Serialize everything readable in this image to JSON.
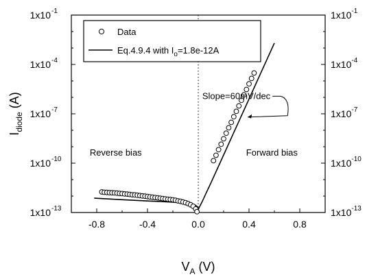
{
  "chart_data": {
    "type": "scatter",
    "xlabel": {
      "main": "V",
      "sub": "A",
      "unit": " (V)"
    },
    "ylabel": {
      "main": "I",
      "sub": "diode",
      "unit": " (A)"
    },
    "xlim": [
      -1.0,
      1.0
    ],
    "ylim_log10": [
      -13,
      -1
    ],
    "y_scale": "log",
    "x_ticks": [
      -0.8,
      -0.4,
      0.0,
      0.4,
      0.8
    ],
    "x_tick_labels": [
      "-0.8",
      "-0.4",
      "0.0",
      "0.4",
      "0.8"
    ],
    "y_ticks_log10": [
      -13,
      -10,
      -7,
      -4,
      -1
    ],
    "y_tick_labels": [
      {
        "base": "1x10",
        "exp": "-13"
      },
      {
        "base": "1x10",
        "exp": "-10"
      },
      {
        "base": "1x10",
        "exp": "-7"
      },
      {
        "base": "1x10",
        "exp": "-4"
      },
      {
        "base": "1x10",
        "exp": "-1"
      }
    ],
    "right_axis_labels": true,
    "vertical_reference_line": {
      "x": 0.0,
      "style": "dotted"
    },
    "legend": {
      "placement": "top-left",
      "entries": [
        {
          "label": "Data",
          "marker": "open-circle"
        },
        {
          "label_pre": "Eq.4.9.4 with I",
          "label_sub": "o",
          "label_post": "=1.8e-12A",
          "marker": "line"
        }
      ]
    },
    "annotations": [
      {
        "text": "Slope=60mV/dec",
        "x": 0.3,
        "y_log10": -6.1,
        "arrow_to_x": 0.39,
        "arrow_to_y_log10": -7.2
      },
      {
        "text": "Reverse bias",
        "x": -0.65,
        "y_log10": -9.55
      },
      {
        "text": "Forward bias",
        "x": 0.58,
        "y_log10": -9.55
      }
    ],
    "series": [
      {
        "name": "Data",
        "kind": "markers",
        "x": [
          -0.76,
          -0.74,
          -0.72,
          -0.7,
          -0.68,
          -0.66,
          -0.64,
          -0.62,
          -0.6,
          -0.58,
          -0.56,
          -0.54,
          -0.52,
          -0.5,
          -0.48,
          -0.46,
          -0.44,
          -0.42,
          -0.4,
          -0.38,
          -0.36,
          -0.34,
          -0.32,
          -0.3,
          -0.28,
          -0.26,
          -0.24,
          -0.22,
          -0.2,
          -0.18,
          -0.16,
          -0.14,
          -0.12,
          -0.1,
          -0.08,
          -0.06,
          -0.04,
          -0.02,
          -0.01,
          0.12,
          0.14,
          0.16,
          0.18,
          0.2,
          0.22,
          0.24,
          0.26,
          0.28,
          0.3,
          0.32,
          0.34,
          0.36,
          0.38,
          0.4,
          0.42,
          0.44
        ],
        "y_log10": [
          -11.75,
          -11.77,
          -11.78,
          -11.79,
          -11.8,
          -11.81,
          -11.82,
          -11.84,
          -11.85,
          -11.87,
          -11.88,
          -11.9,
          -11.92,
          -11.93,
          -11.95,
          -11.97,
          -11.99,
          -12.01,
          -12.03,
          -12.05,
          -12.07,
          -12.09,
          -12.11,
          -12.13,
          -12.15,
          -12.17,
          -12.19,
          -12.21,
          -12.23,
          -12.26,
          -12.29,
          -12.32,
          -12.36,
          -12.4,
          -12.46,
          -12.53,
          -12.62,
          -12.78,
          -12.95,
          -9.85,
          -9.52,
          -9.18,
          -8.85,
          -8.52,
          -8.18,
          -7.85,
          -7.52,
          -7.18,
          -6.85,
          -6.52,
          -6.18,
          -5.85,
          -5.52,
          -5.18,
          -4.85,
          -4.52
        ]
      },
      {
        "name": "Eq.4.9.4 with Io=1.8e-12A",
        "kind": "line",
        "x": [
          -0.82,
          -0.6,
          -0.4,
          -0.3,
          -0.2,
          -0.12,
          -0.08,
          -0.05,
          -0.03,
          -0.01,
          0.0,
          0.01,
          0.03,
          0.06,
          0.1,
          0.2,
          0.3,
          0.4,
          0.5,
          0.6
        ],
        "y_log10": [
          -12.13,
          -12.22,
          -12.3,
          -12.33,
          -12.37,
          -12.42,
          -12.45,
          -12.48,
          -12.52,
          -12.62,
          -12.8,
          -12.65,
          -12.35,
          -11.85,
          -11.2,
          -9.5,
          -7.8,
          -6.1,
          -4.4,
          -2.7
        ]
      }
    ]
  }
}
